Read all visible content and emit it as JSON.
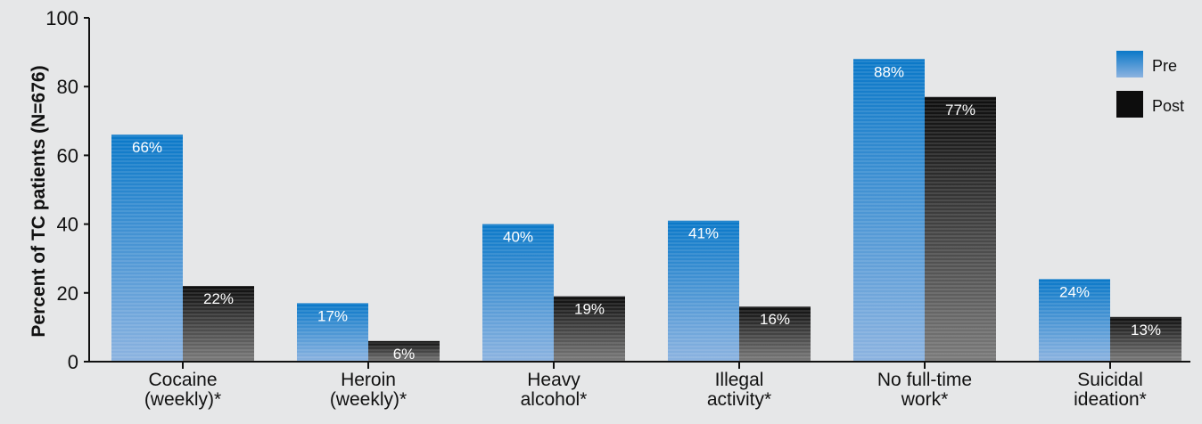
{
  "chart_data": {
    "type": "bar",
    "ylabel": "Percent of TC patients (N=676)",
    "ylim": [
      0,
      100
    ],
    "yticks": [
      "0",
      "20",
      "40",
      "60",
      "80",
      "100"
    ],
    "categories": [
      [
        "Cocaine",
        "(weekly)*"
      ],
      [
        "Heroin",
        "(weekly)*"
      ],
      [
        "Heavy",
        "alcohol*"
      ],
      [
        "Illegal",
        "activity*"
      ],
      [
        "No full-time",
        "work*"
      ],
      [
        "Suicidal",
        "ideation*"
      ]
    ],
    "series": [
      {
        "name": "Pre",
        "values": [
          66,
          17,
          40,
          41,
          88,
          24
        ],
        "labels": [
          "66%",
          "17%",
          "40%",
          "41%",
          "88%",
          "24%"
        ],
        "color": "#1a7cc7"
      },
      {
        "name": "Post",
        "values": [
          22,
          6,
          19,
          16,
          77,
          13
        ],
        "labels": [
          "22%",
          "6%",
          "19%",
          "16%",
          "77%",
          "13%"
        ],
        "color": "#1a1a1a"
      }
    ],
    "legend_position": "top-right",
    "grid": false
  }
}
